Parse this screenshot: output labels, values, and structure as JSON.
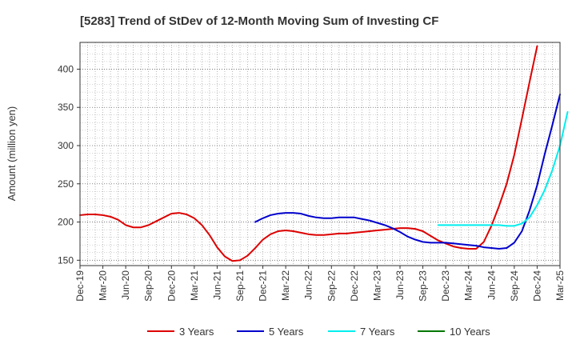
{
  "chart_data": {
    "type": "line",
    "title": "[5283]  Trend of StDev of 12-Month Moving Sum of Investing CF",
    "xlabel": "",
    "ylabel": "Amount (million yen)",
    "x_start": "Dec-19",
    "x_end": "Mar-25",
    "xticks": [
      "Dec-19",
      "Mar-20",
      "Jun-20",
      "Sep-20",
      "Dec-20",
      "Mar-21",
      "Jun-21",
      "Sep-21",
      "Dec-21",
      "Mar-22",
      "Jun-22",
      "Sep-22",
      "Dec-22",
      "Mar-23",
      "Jun-23",
      "Sep-23",
      "Dec-23",
      "Mar-24",
      "Jun-24",
      "Sep-24",
      "Dec-24",
      "Mar-25"
    ],
    "ylim": [
      143,
      435
    ],
    "yticks": [
      150,
      200,
      250,
      300,
      350,
      400
    ],
    "grid": true,
    "legend_position": "bottom",
    "series": [
      {
        "name": "3 Years",
        "color": "#dd0000",
        "start": "Dec-19",
        "values": [
          209,
          210,
          210,
          209,
          207,
          203,
          196,
          193,
          193,
          196,
          201,
          206,
          211,
          212,
          210,
          205,
          196,
          183,
          167,
          155,
          149,
          150,
          156,
          166,
          177,
          184,
          188,
          189,
          188,
          186,
          184,
          183,
          183,
          184,
          185,
          185,
          186,
          187,
          188,
          189,
          190,
          191,
          192,
          192,
          191,
          188,
          182,
          176,
          172,
          168,
          166,
          165,
          165,
          174,
          195,
          221,
          250,
          288,
          335,
          383,
          430
        ]
      },
      {
        "name": "5 Years",
        "color": "#0000cc",
        "start": "Nov-21",
        "values": [
          200,
          205,
          209,
          211,
          212,
          212,
          211,
          208,
          206,
          205,
          205,
          206,
          206,
          206,
          204,
          202,
          199,
          196,
          192,
          187,
          181,
          177,
          174,
          173,
          173,
          173,
          172,
          171,
          170,
          169,
          167,
          166,
          165,
          166,
          173,
          188,
          215,
          248,
          289,
          327,
          367
        ]
      },
      {
        "name": "7 Years",
        "color": "#00eeee",
        "start": "Nov-23",
        "values": [
          196,
          196,
          196,
          196,
          196,
          196,
          196,
          196,
          196,
          195,
          195,
          198,
          206,
          222,
          242,
          268,
          300,
          344
        ]
      },
      {
        "name": "10 Years",
        "color": "#007700",
        "start": "Dec-24",
        "values": []
      }
    ]
  }
}
